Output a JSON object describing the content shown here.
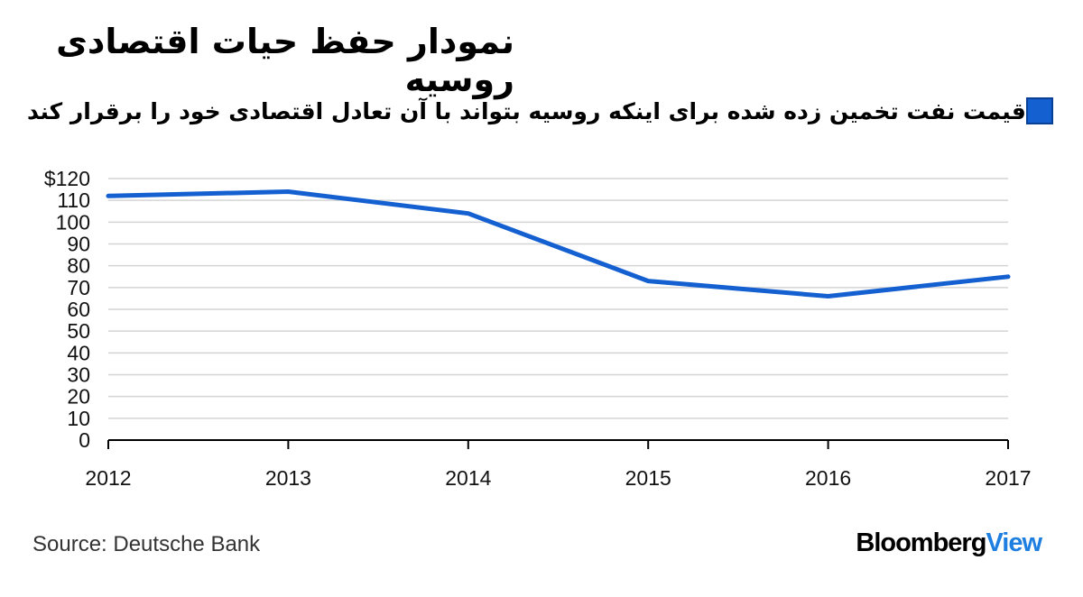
{
  "title": "نمودار حفظ حیات اقتصادی روسیه",
  "source": "Source: Deutsche Bank",
  "brand": {
    "part1": "Bloomberg",
    "part2": "View",
    "color1": "#000000",
    "color2": "#1e7fe0"
  },
  "chart_data": {
    "type": "line",
    "x": [
      "2012",
      "2013",
      "2014",
      "2015",
      "2016",
      "2017"
    ],
    "series": [
      {
        "name": "قیمت نفت تخمین زده شده برای اینکه روسیه بتواند با آن تعادل اقتصادی خود را برقرار کند",
        "values": [
          112,
          114,
          104,
          73,
          66,
          75
        ],
        "color": "#1560d0"
      }
    ],
    "y_ticks": [
      "0",
      "10",
      "20",
      "30",
      "40",
      "50",
      "60",
      "70",
      "80",
      "90",
      "100",
      "110",
      "$120"
    ],
    "ylim": [
      0,
      120
    ],
    "grid": true,
    "legend_position": "top"
  }
}
